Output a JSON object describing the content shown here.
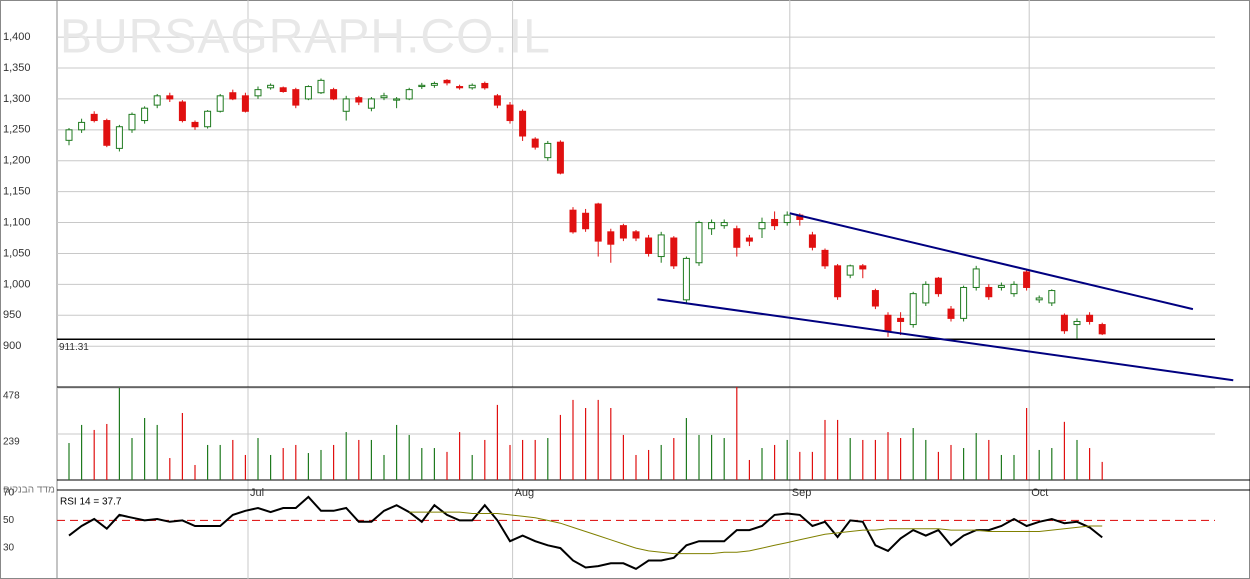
{
  "chart_data": {
    "type": "candlestick",
    "watermark": "BURSAGRAPH.CO.IL",
    "index_name": "מדד הבנקים",
    "categories": [
      null,
      null,
      null,
      null,
      null,
      null,
      null,
      null,
      null,
      null,
      null,
      null,
      null,
      null,
      null,
      "Jul",
      null,
      null,
      null,
      null,
      null,
      null,
      null,
      null,
      null,
      null,
      null,
      null,
      null,
      null,
      null,
      null,
      null,
      null,
      null,
      null,
      "Aug",
      null,
      null,
      null,
      null,
      null,
      null,
      null,
      null,
      null,
      null,
      null,
      null,
      null,
      null,
      null,
      null,
      null,
      null,
      null,
      null,
      null,
      "Sep",
      null,
      null,
      null,
      null,
      null,
      null,
      null,
      null,
      null,
      null,
      null,
      null,
      null,
      null,
      null,
      null,
      null,
      null,
      "Oct",
      null,
      null,
      null,
      null,
      null
    ],
    "open": [
      1233,
      1250,
      1275,
      1265,
      1220,
      1250,
      1265,
      1290,
      1305,
      1295,
      1262,
      1255,
      1280,
      1310,
      1305,
      1305,
      1318,
      1318,
      1315,
      1300,
      1310,
      1315,
      1280,
      1302,
      1285,
      1302,
      1298,
      1300,
      1320,
      1322,
      1330,
      1320,
      1318,
      1325,
      1305,
      1290,
      1280,
      1235,
      1205,
      1230,
      1120,
      1115,
      1130,
      1085,
      1095,
      1085,
      1075,
      1045,
      1075,
      975,
      1035,
      1090,
      1095,
      1090,
      1075,
      1090,
      1105,
      1100,
      1112,
      1080,
      1055,
      1030,
      1015,
      1030,
      990,
      950,
      945,
      935,
      970,
      1010,
      960,
      945,
      995,
      995,
      995,
      985,
      1020,
      975,
      970,
      950,
      935,
      950,
      935
    ],
    "high": [
      1253,
      1268,
      1280,
      1268,
      1258,
      1278,
      1288,
      1308,
      1310,
      1298,
      1265,
      1282,
      1308,
      1315,
      1310,
      1320,
      1325,
      1320,
      1318,
      1322,
      1333,
      1318,
      1305,
      1305,
      1303,
      1310,
      1303,
      1318,
      1326,
      1328,
      1332,
      1323,
      1325,
      1328,
      1308,
      1295,
      1283,
      1238,
      1232,
      1233,
      1125,
      1122,
      1132,
      1090,
      1098,
      1088,
      1080,
      1085,
      1078,
      1045,
      1103,
      1105,
      1105,
      1095,
      1080,
      1108,
      1118,
      1118,
      1115,
      1085,
      1058,
      1033,
      1032,
      1033,
      993,
      955,
      955,
      988,
      1005,
      1012,
      965,
      998,
      1030,
      1000,
      1003,
      1005,
      1025,
      982,
      992,
      953,
      945,
      955,
      938
    ],
    "low": [
      1225,
      1245,
      1262,
      1222,
      1215,
      1245,
      1260,
      1285,
      1295,
      1262,
      1250,
      1252,
      1278,
      1298,
      1278,
      1300,
      1315,
      1310,
      1285,
      1298,
      1308,
      1298,
      1265,
      1290,
      1280,
      1298,
      1285,
      1298,
      1316,
      1318,
      1322,
      1315,
      1315,
      1315,
      1285,
      1260,
      1232,
      1218,
      1200,
      1178,
      1082,
      1085,
      1045,
      1035,
      1070,
      1070,
      1045,
      1035,
      1025,
      968,
      1030,
      1080,
      1090,
      1045,
      1062,
      1075,
      1088,
      1095,
      1095,
      1055,
      1025,
      975,
      1010,
      1010,
      960,
      915,
      918,
      930,
      965,
      980,
      940,
      940,
      990,
      975,
      990,
      980,
      990,
      970,
      965,
      920,
      912,
      935,
      918
    ],
    "close": [
      1250,
      1262,
      1265,
      1225,
      1255,
      1275,
      1285,
      1305,
      1300,
      1265,
      1255,
      1280,
      1305,
      1300,
      1280,
      1315,
      1322,
      1312,
      1290,
      1320,
      1330,
      1300,
      1300,
      1295,
      1300,
      1305,
      1300,
      1315,
      1322,
      1325,
      1326,
      1318,
      1322,
      1318,
      1290,
      1265,
      1240,
      1222,
      1228,
      1180,
      1085,
      1090,
      1070,
      1065,
      1075,
      1075,
      1050,
      1080,
      1030,
      1042,
      1100,
      1100,
      1100,
      1060,
      1070,
      1100,
      1095,
      1112,
      1105,
      1060,
      1030,
      980,
      1030,
      1025,
      965,
      925,
      940,
      985,
      1000,
      985,
      945,
      995,
      1025,
      980,
      998,
      1000,
      995,
      978,
      990,
      925,
      940,
      940,
      920
    ],
    "colors": {
      "up": "#1f7a1f",
      "down": "#e01010"
    },
    "ylim": [
      834,
      1460
    ],
    "yticks": [
      {
        "value": 1400,
        "label": "1,400"
      },
      {
        "value": 1350,
        "label": "1,350"
      },
      {
        "value": 1300,
        "label": "1,300"
      },
      {
        "value": 1250,
        "label": "1,250"
      },
      {
        "value": 1200,
        "label": "1,200"
      },
      {
        "value": 1150,
        "label": "1,150"
      },
      {
        "value": 1100,
        "label": "1,100"
      },
      {
        "value": 1050,
        "label": "1,050"
      },
      {
        "value": 1000,
        "label": "1,000"
      },
      950,
      900
    ],
    "grid": true,
    "hline": 911.31,
    "trendlines": [
      {
        "color": "#000080",
        "x": [
          57.2,
          89.2
        ],
        "y": [
          1115,
          960
        ]
      },
      {
        "color": "#000080",
        "x": [
          46.7,
          92.4
        ],
        "y": [
          976,
          845
        ]
      }
    ],
    "volume": {
      "ylim": [
        0,
        483
      ],
      "yticks": [
        239,
        478
      ],
      "values": [
        192,
        286,
        260,
        291,
        478,
        218,
        322,
        286,
        114,
        348,
        78,
        182,
        182,
        208,
        130,
        218,
        130,
        166,
        182,
        140,
        156,
        182,
        249,
        208,
        208,
        130,
        286,
        234,
        166,
        166,
        146,
        249,
        130,
        208,
        390,
        182,
        208,
        208,
        218,
        338,
        416,
        374,
        416,
        374,
        234,
        130,
        156,
        182,
        218,
        322,
        234,
        234,
        218,
        483,
        104,
        166,
        182,
        208,
        146,
        146,
        312,
        312,
        218,
        208,
        208,
        249,
        218,
        270,
        208,
        146,
        182,
        166,
        244,
        208,
        130,
        130,
        374,
        156,
        166,
        302,
        208,
        166,
        94
      ]
    },
    "rsi": {
      "label": "RSI 14 = 37.7",
      "ylim": [
        12,
        72
      ],
      "yticks": [
        70,
        50,
        30
      ],
      "level": 50,
      "level_color": "#e02020",
      "series": [
        {
          "color": "#000000",
          "values": [
            39,
            46,
            51,
            44,
            54,
            52,
            50,
            51,
            49,
            50,
            46,
            46,
            46,
            54,
            57,
            59,
            56,
            59,
            59,
            67,
            57,
            57,
            59,
            49,
            49,
            57,
            61,
            56,
            49,
            61,
            54,
            50,
            50,
            61,
            50,
            35,
            39,
            35,
            32,
            30,
            21,
            16,
            17,
            19,
            19,
            15,
            21,
            21,
            23,
            32,
            35,
            35,
            35,
            43,
            43,
            46,
            54,
            55,
            54,
            46,
            49,
            38,
            50,
            49,
            32,
            28,
            37,
            43,
            39,
            43,
            32,
            39,
            43,
            43,
            46,
            51,
            46,
            49,
            51,
            48,
            49,
            45,
            37.7
          ]
        },
        {
          "color": "#808000",
          "values": [
            null,
            null,
            null,
            null,
            null,
            null,
            null,
            null,
            null,
            null,
            null,
            null,
            null,
            null,
            null,
            null,
            null,
            null,
            null,
            null,
            null,
            null,
            null,
            null,
            null,
            null,
            null,
            56,
            56,
            56,
            56,
            56,
            55,
            55,
            55,
            54,
            53,
            52,
            50,
            48,
            45,
            42,
            39,
            36,
            33,
            30,
            28,
            27,
            26,
            26,
            26,
            26,
            27,
            27,
            28,
            30,
            32,
            34,
            36,
            38,
            40,
            41,
            42,
            43,
            43,
            44,
            44,
            44,
            44,
            44,
            43,
            43,
            43,
            42,
            42,
            42,
            42,
            42,
            43,
            44,
            45,
            46,
            46
          ]
        }
      ]
    }
  }
}
